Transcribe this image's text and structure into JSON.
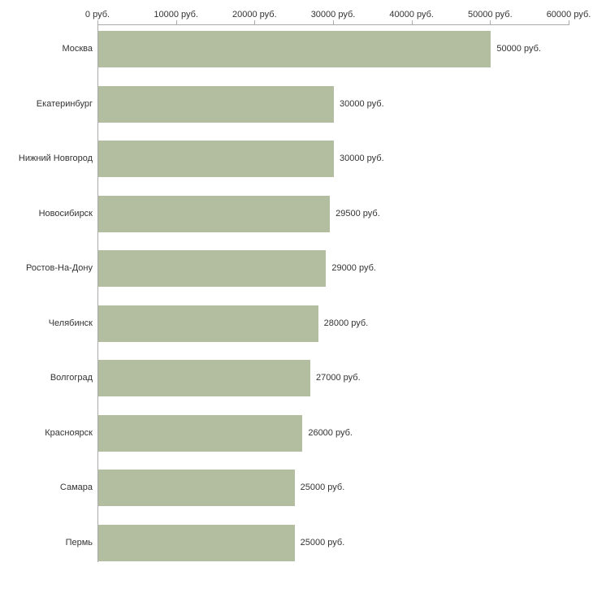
{
  "chart_data": {
    "type": "bar",
    "orientation": "horizontal",
    "title": "",
    "xlabel": "",
    "ylabel": "",
    "xlim": [
      0,
      60000
    ],
    "grid": false,
    "legend": false,
    "bar_color": "#b3bda0",
    "axis_color": "#aaaaaa",
    "text_color": "#333333",
    "categories": [
      "Москва",
      "Екатеринбург",
      "Нижний Новгород",
      "Новосибирск",
      "Ростов-На-Дону",
      "Челябинск",
      "Волгоград",
      "Красноярск",
      "Самара",
      "Пермь"
    ],
    "values": [
      50000,
      30000,
      30000,
      29500,
      29000,
      28000,
      27000,
      26000,
      25000,
      25000
    ],
    "value_labels": [
      "50000 руб.",
      "30000 руб.",
      "30000 руб.",
      "29500 руб.",
      "29000 руб.",
      "28000 руб.",
      "27000 руб.",
      "26000 руб.",
      "25000 руб.",
      "25000 руб."
    ],
    "x_ticks": [
      {
        "value": 0,
        "label": "0 руб."
      },
      {
        "value": 10000,
        "label": "10000 руб."
      },
      {
        "value": 20000,
        "label": "20000 руб."
      },
      {
        "value": 30000,
        "label": "30000 руб."
      },
      {
        "value": 40000,
        "label": "40000 руб."
      },
      {
        "value": 50000,
        "label": "50000 руб."
      },
      {
        "value": 60000,
        "label": "60000 руб."
      }
    ]
  }
}
